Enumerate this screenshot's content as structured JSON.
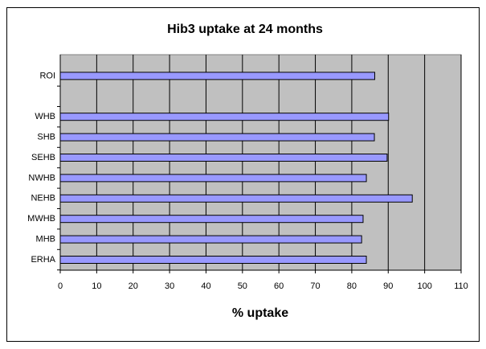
{
  "chart_data": {
    "type": "bar",
    "orientation": "horizontal",
    "title": "Hib3 uptake at 24 months",
    "x_label": "% uptake",
    "categories": [
      "ROI",
      null,
      "WHB",
      "SHB",
      "SEHB",
      "NWHB",
      "NEHB",
      "MWHB",
      "MHB",
      "ERHA"
    ],
    "values": [
      86.3,
      null,
      90.1,
      86.2,
      89.7,
      84,
      96.6,
      83.1,
      82.7,
      84
    ],
    "color": "#9999ff",
    "xlim": [
      0,
      110
    ],
    "xticks": [
      0,
      10,
      20,
      30,
      40,
      50,
      60,
      70,
      80,
      90,
      100,
      110
    ],
    "grid": true
  }
}
